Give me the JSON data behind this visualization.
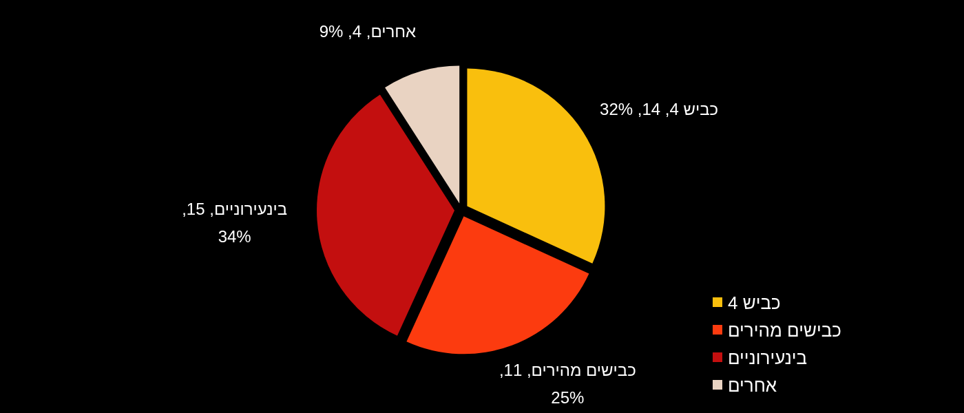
{
  "chart_data": {
    "type": "pie",
    "categories": [
      "כביש 4",
      "כבישים מהירים",
      "בינעירוניים",
      "אחרים"
    ],
    "values": [
      14,
      11,
      15,
      4
    ],
    "value_labels": [
      "כביש 4, 14, 32%",
      "כבישים מהירים, 11, 25%",
      "בינעירוניים, 15, 34%",
      "אחרים, 4, 9%"
    ],
    "colors": [
      "#f9bf0d",
      "#fc3b0f",
      "#c30f0f",
      "#e9d3c2"
    ],
    "legend": "bottom right"
  }
}
